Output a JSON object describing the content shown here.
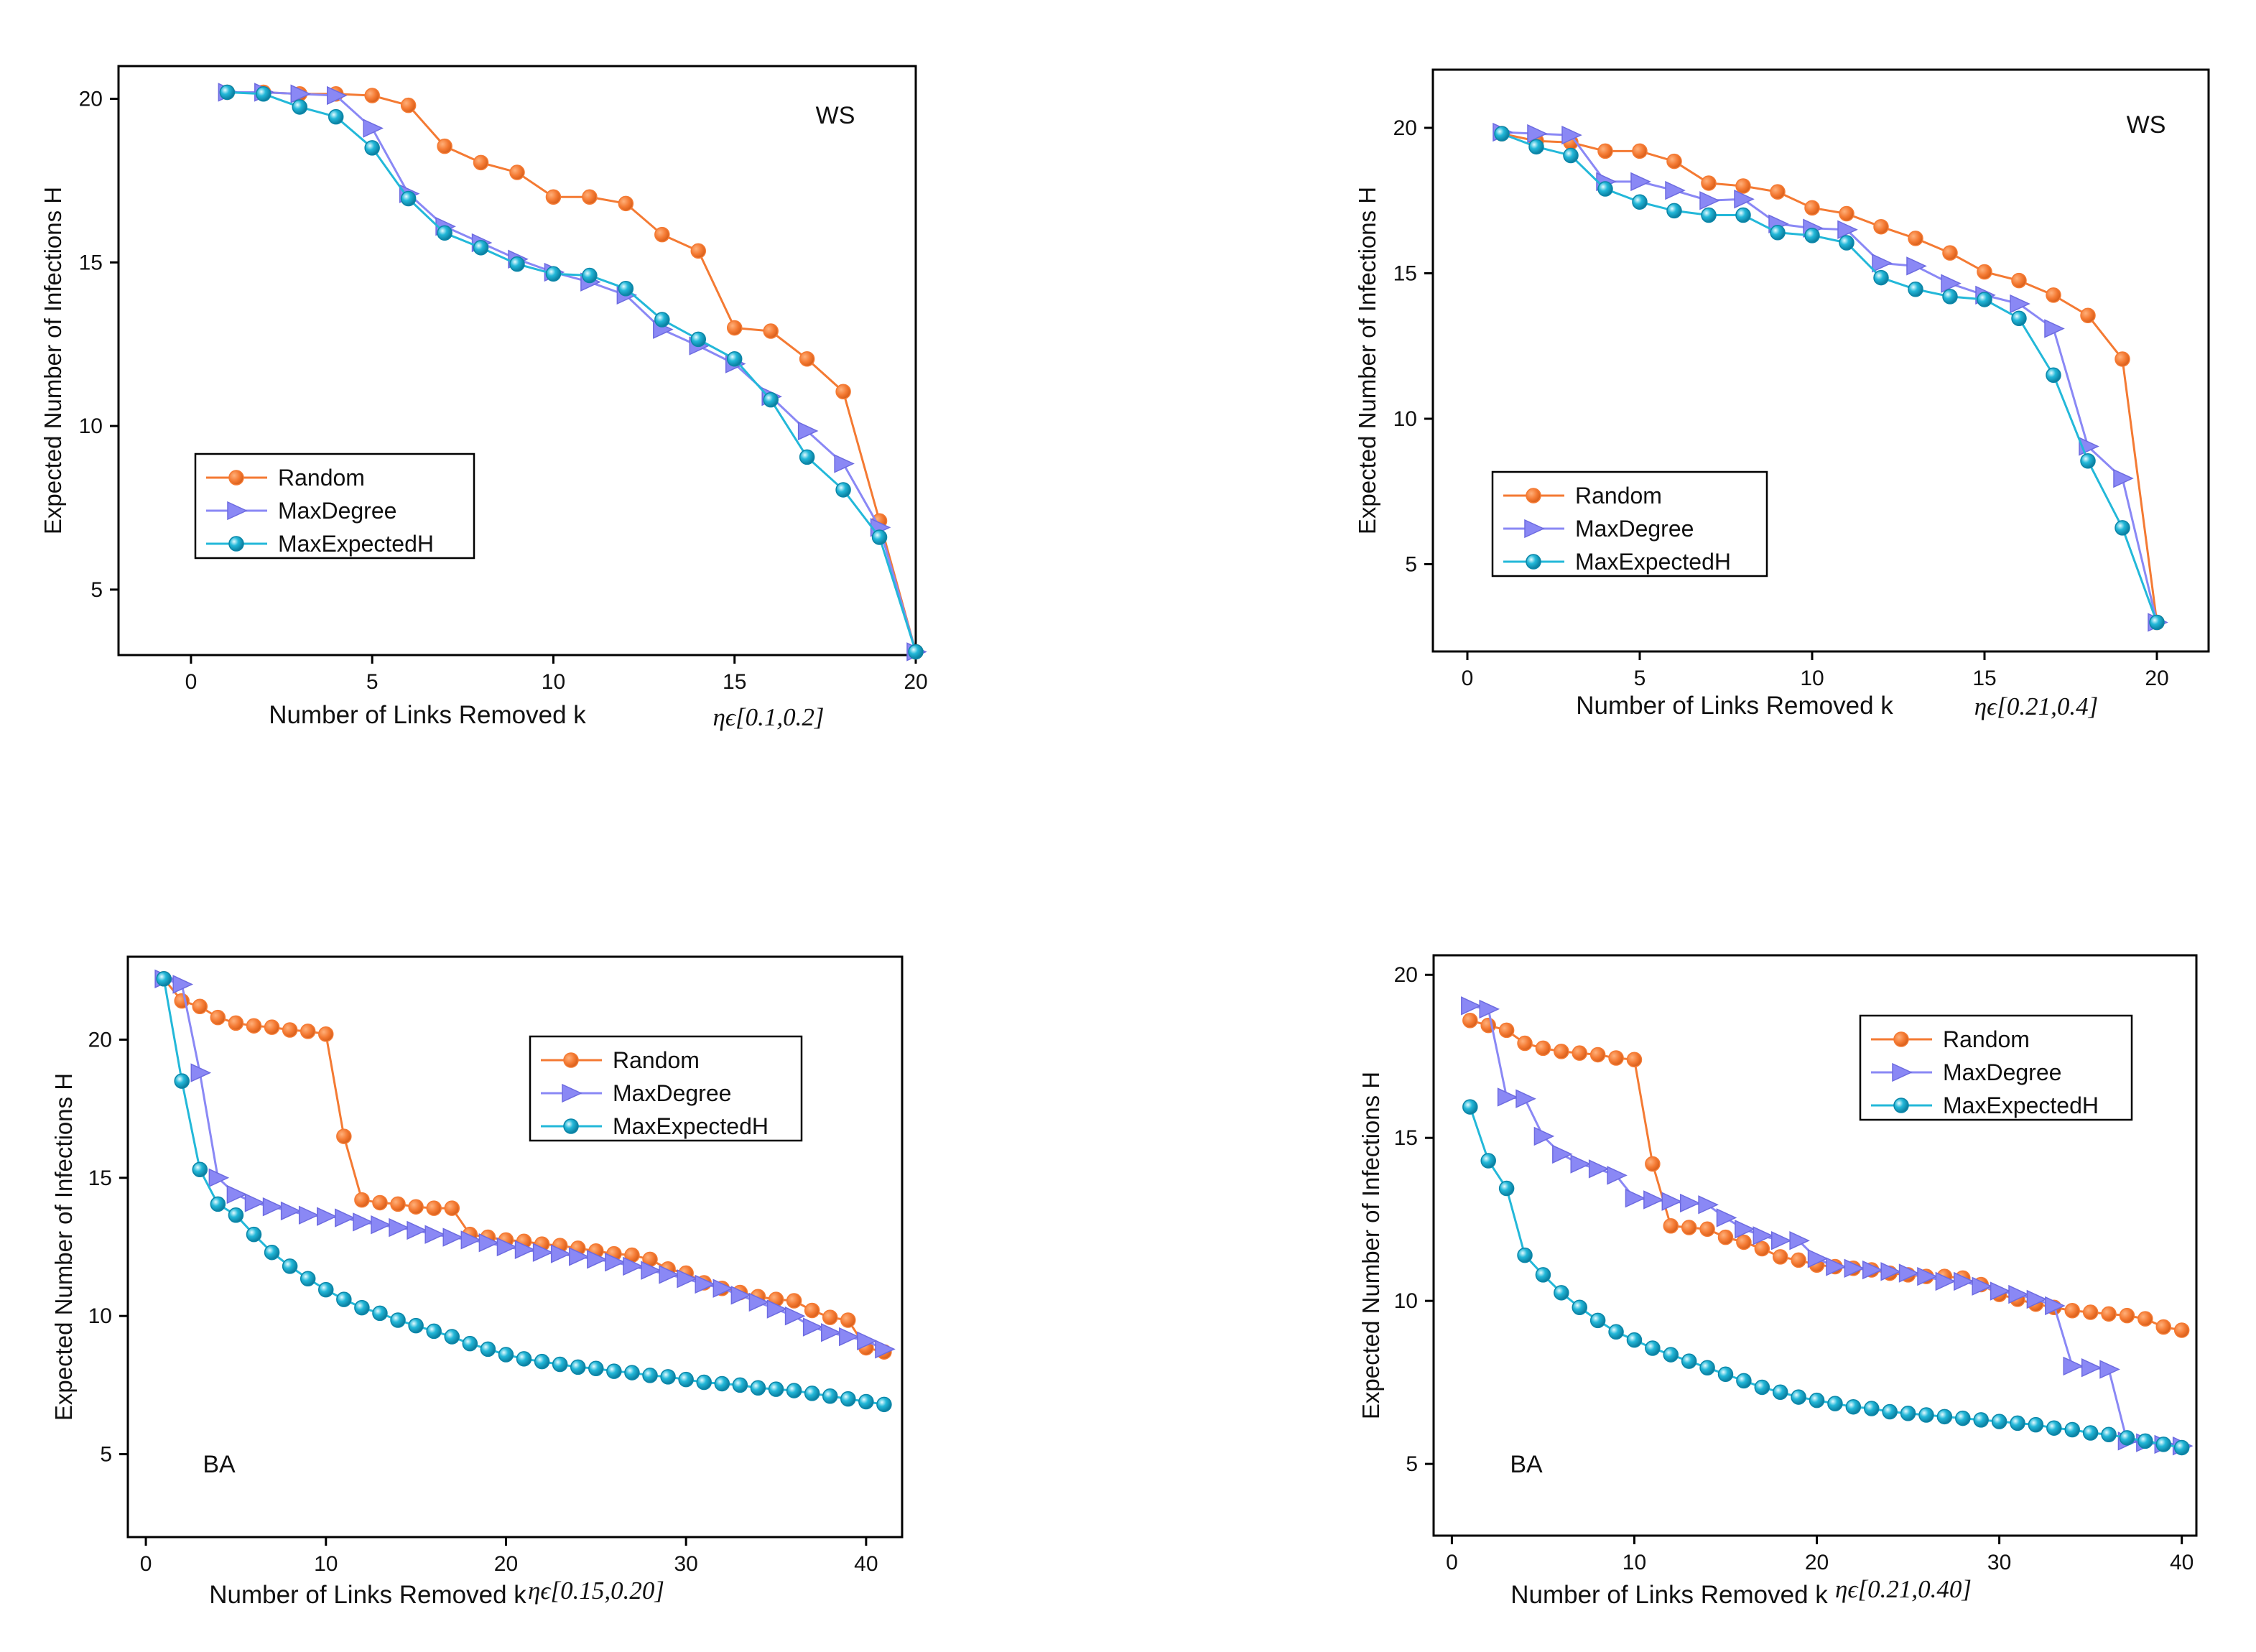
{
  "colors": {
    "random": "#F47A33",
    "maxdegree": "#8A88F5",
    "maxexpected": "#23B8D9"
  },
  "chart_data": [
    {
      "type": "line",
      "panel_label": "WS",
      "eta_note": "ηϵ[0.1,0.2]",
      "xlabel": "Number of Links Removed k",
      "ylabel": "Expected Number of Infections H",
      "xlim": [
        -2,
        20
      ],
      "ylim": [
        3,
        21
      ],
      "xticks": [
        0,
        5,
        10,
        15,
        20
      ],
      "yticks": [
        5,
        10,
        15,
        20
      ],
      "legend": {
        "position": "lower-left",
        "entries": [
          "Random",
          "MaxDegree",
          "MaxExpectedH"
        ]
      },
      "series": [
        {
          "name": "Random",
          "color_key": "random",
          "marker": "circle",
          "x": [
            1,
            2,
            3,
            4,
            5,
            6,
            7,
            8,
            9,
            10,
            11,
            12,
            13,
            14,
            15,
            16,
            17,
            18,
            19,
            20
          ],
          "y": [
            20.2,
            20.2,
            20.15,
            20.15,
            20.1,
            19.8,
            18.55,
            18.05,
            17.75,
            17.0,
            17.0,
            16.8,
            15.85,
            15.35,
            13.0,
            12.9,
            12.05,
            11.05,
            7.1,
            3.1
          ]
        },
        {
          "name": "MaxDegree",
          "color_key": "maxdegree",
          "marker": "triangle",
          "x": [
            1,
            2,
            3,
            4,
            5,
            6,
            7,
            8,
            9,
            10,
            11,
            12,
            13,
            14,
            15,
            16,
            17,
            18,
            19,
            20
          ],
          "y": [
            20.2,
            20.2,
            20.15,
            20.1,
            19.1,
            17.1,
            16.1,
            15.6,
            15.1,
            14.7,
            14.4,
            14.0,
            12.95,
            12.45,
            11.9,
            10.9,
            9.85,
            8.85,
            6.9,
            3.1
          ]
        },
        {
          "name": "MaxExpectedH",
          "color_key": "maxexpected",
          "marker": "sphere",
          "x": [
            1,
            2,
            3,
            4,
            5,
            6,
            7,
            8,
            9,
            10,
            11,
            12,
            13,
            14,
            15,
            16,
            17,
            18,
            19,
            20
          ],
          "y": [
            20.2,
            20.15,
            19.75,
            19.45,
            18.5,
            16.95,
            15.9,
            15.45,
            14.95,
            14.65,
            14.6,
            14.2,
            13.25,
            12.65,
            12.05,
            10.8,
            9.05,
            8.05,
            6.6,
            3.1
          ]
        }
      ]
    },
    {
      "type": "line",
      "panel_label": "WS",
      "eta_note": "ηϵ[0.21,0.4]",
      "xlabel": "Number of Links Removed k",
      "ylabel": "Expected Number of Infections H",
      "xlim": [
        -1,
        21.5
      ],
      "ylim": [
        2,
        22
      ],
      "xticks": [
        0,
        5,
        10,
        15,
        20
      ],
      "yticks": [
        5,
        10,
        15,
        20
      ],
      "legend": {
        "position": "lower-left",
        "entries": [
          "Random",
          "MaxDegree",
          "MaxExpectedH"
        ]
      },
      "series": [
        {
          "name": "Random",
          "color_key": "random",
          "marker": "circle",
          "x": [
            1,
            2,
            3,
            4,
            5,
            6,
            7,
            8,
            9,
            10,
            11,
            12,
            13,
            14,
            15,
            16,
            17,
            18,
            19,
            20
          ],
          "y": [
            19.8,
            19.55,
            19.5,
            19.2,
            19.2,
            18.85,
            18.1,
            18.0,
            17.8,
            17.25,
            17.05,
            16.6,
            16.2,
            15.7,
            15.05,
            14.75,
            14.25,
            13.55,
            12.05,
            3.0
          ]
        },
        {
          "name": "MaxDegree",
          "color_key": "maxdegree",
          "marker": "triangle",
          "x": [
            1,
            2,
            3,
            4,
            5,
            6,
            7,
            8,
            9,
            10,
            11,
            12,
            13,
            14,
            15,
            16,
            17,
            18,
            19,
            20
          ],
          "y": [
            19.85,
            19.8,
            19.75,
            18.15,
            18.15,
            17.85,
            17.5,
            17.55,
            16.7,
            16.55,
            16.5,
            15.35,
            15.25,
            14.65,
            14.25,
            13.95,
            13.1,
            9.05,
            7.95,
            3.0
          ]
        },
        {
          "name": "MaxExpectedH",
          "color_key": "maxexpected",
          "marker": "sphere",
          "x": [
            1,
            2,
            3,
            4,
            5,
            6,
            7,
            8,
            9,
            10,
            11,
            12,
            13,
            14,
            15,
            16,
            17,
            18,
            19,
            20
          ],
          "y": [
            19.8,
            19.35,
            19.05,
            17.9,
            17.45,
            17.15,
            17.0,
            17.0,
            16.4,
            16.3,
            16.05,
            14.85,
            14.45,
            14.2,
            14.1,
            13.45,
            11.5,
            8.55,
            6.25,
            3.0
          ]
        }
      ]
    },
    {
      "type": "line",
      "panel_label": "BA",
      "eta_note": "ηϵ[0.15,0.20]",
      "xlabel": "Number of Links Removed k",
      "ylabel": "Expected Number of Infections H",
      "xlim": [
        -1,
        42
      ],
      "ylim": [
        2,
        23
      ],
      "xticks": [
        0,
        10,
        20,
        30,
        40
      ],
      "yticks": [
        5,
        10,
        15,
        20
      ],
      "legend": {
        "position": "top-right",
        "entries": [
          "Random",
          "MaxDegree",
          "MaxExpectedH"
        ]
      },
      "series": [
        {
          "name": "Random",
          "color_key": "random",
          "marker": "circle",
          "x": [
            1,
            2,
            3,
            4,
            5,
            6,
            7,
            8,
            9,
            10,
            11,
            12,
            13,
            14,
            15,
            16,
            17,
            18,
            19,
            20,
            21,
            22,
            23,
            24,
            25,
            26,
            27,
            28,
            29,
            30,
            31,
            32,
            33,
            34,
            35,
            36,
            37,
            38,
            39,
            40,
            41
          ],
          "y": [
            22.2,
            21.4,
            21.2,
            20.8,
            20.6,
            20.5,
            20.45,
            20.35,
            20.3,
            20.2,
            16.5,
            14.2,
            14.1,
            14.05,
            13.95,
            13.9,
            13.9,
            12.95,
            12.85,
            12.75,
            12.7,
            12.6,
            12.55,
            12.45,
            12.35,
            12.25,
            12.2,
            12.05,
            11.7,
            11.55,
            11.2,
            11.0,
            10.85,
            10.7,
            10.6,
            10.55,
            10.2,
            9.95,
            9.85,
            8.85,
            8.7
          ]
        },
        {
          "name": "MaxDegree",
          "color_key": "maxdegree",
          "marker": "triangle",
          "x": [
            1,
            2,
            3,
            4,
            5,
            6,
            7,
            8,
            9,
            10,
            11,
            12,
            13,
            14,
            15,
            16,
            17,
            18,
            19,
            20,
            21,
            22,
            23,
            24,
            25,
            26,
            27,
            28,
            29,
            30,
            31,
            32,
            33,
            34,
            35,
            36,
            37,
            38,
            39,
            40,
            41
          ],
          "y": [
            22.2,
            22.0,
            18.8,
            15.0,
            14.4,
            14.1,
            13.95,
            13.8,
            13.65,
            13.6,
            13.55,
            13.4,
            13.3,
            13.2,
            13.1,
            12.95,
            12.85,
            12.75,
            12.65,
            12.5,
            12.4,
            12.3,
            12.25,
            12.15,
            12.05,
            11.95,
            11.8,
            11.65,
            11.5,
            11.35,
            11.15,
            11.0,
            10.75,
            10.5,
            10.25,
            10.0,
            9.6,
            9.4,
            9.25,
            9.1,
            8.8
          ]
        },
        {
          "name": "MaxExpectedH",
          "color_key": "maxexpected",
          "marker": "sphere",
          "x": [
            1,
            2,
            3,
            4,
            5,
            6,
            7,
            8,
            9,
            10,
            11,
            12,
            13,
            14,
            15,
            16,
            17,
            18,
            19,
            20,
            21,
            22,
            23,
            24,
            25,
            26,
            27,
            28,
            29,
            30,
            31,
            32,
            33,
            34,
            35,
            36,
            37,
            38,
            39,
            40,
            41
          ],
          "y": [
            22.2,
            18.5,
            15.3,
            14.05,
            13.65,
            12.95,
            12.3,
            11.8,
            11.35,
            10.95,
            10.6,
            10.3,
            10.1,
            9.85,
            9.65,
            9.45,
            9.25,
            9.0,
            8.8,
            8.6,
            8.45,
            8.35,
            8.25,
            8.15,
            8.1,
            8.0,
            7.95,
            7.85,
            7.8,
            7.7,
            7.6,
            7.55,
            7.5,
            7.4,
            7.35,
            7.3,
            7.2,
            7.1,
            7.0,
            6.9,
            6.8
          ]
        }
      ]
    },
    {
      "type": "line",
      "panel_label": "BA",
      "eta_note": "ηϵ[0.21,0.40]",
      "xlabel": "Number of Links Removed k",
      "ylabel": "Expected Number of Infections H",
      "xlim": [
        -1,
        40.8
      ],
      "ylim": [
        2.8,
        20.6
      ],
      "xticks": [
        0,
        10,
        20,
        30,
        40
      ],
      "yticks": [
        5,
        10,
        15,
        20
      ],
      "legend": {
        "position": "top-right",
        "entries": [
          "Random",
          "MaxDegree",
          "MaxExpectedH"
        ]
      },
      "series": [
        {
          "name": "Random",
          "color_key": "random",
          "marker": "circle",
          "x": [
            1,
            2,
            3,
            4,
            5,
            6,
            7,
            8,
            9,
            10,
            11,
            12,
            13,
            14,
            15,
            16,
            17,
            18,
            19,
            20,
            21,
            22,
            23,
            24,
            25,
            26,
            27,
            28,
            29,
            30,
            31,
            32,
            33,
            34,
            35,
            36,
            37,
            38,
            39,
            40
          ],
          "y": [
            18.6,
            18.45,
            18.3,
            17.9,
            17.75,
            17.65,
            17.6,
            17.55,
            17.45,
            17.4,
            14.2,
            12.3,
            12.25,
            12.2,
            11.95,
            11.8,
            11.6,
            11.35,
            11.25,
            11.1,
            11.05,
            11.0,
            10.95,
            10.85,
            10.8,
            10.75,
            10.75,
            10.7,
            10.5,
            10.2,
            10.05,
            9.9,
            9.8,
            9.7,
            9.65,
            9.6,
            9.55,
            9.45,
            9.2,
            9.1
          ]
        },
        {
          "name": "MaxDegree",
          "color_key": "maxdegree",
          "marker": "triangle",
          "x": [
            1,
            2,
            3,
            4,
            5,
            6,
            7,
            8,
            9,
            10,
            11,
            12,
            13,
            14,
            15,
            16,
            17,
            18,
            19,
            20,
            21,
            22,
            23,
            24,
            25,
            26,
            27,
            28,
            29,
            30,
            31,
            32,
            33,
            34,
            35,
            36,
            37,
            38,
            39,
            40
          ],
          "y": [
            19.05,
            18.95,
            16.25,
            16.2,
            15.05,
            14.5,
            14.2,
            14.05,
            13.85,
            13.15,
            13.1,
            13.05,
            13.0,
            12.95,
            12.55,
            12.2,
            12.0,
            11.85,
            11.85,
            11.3,
            11.05,
            11.0,
            10.95,
            10.9,
            10.85,
            10.75,
            10.6,
            10.6,
            10.45,
            10.3,
            10.2,
            10.05,
            9.85,
            8.0,
            7.95,
            7.9,
            5.7,
            5.65,
            5.6,
            5.55
          ]
        },
        {
          "name": "MaxExpectedH",
          "color_key": "maxexpected",
          "marker": "sphere",
          "x": [
            1,
            2,
            3,
            4,
            5,
            6,
            7,
            8,
            9,
            10,
            11,
            12,
            13,
            14,
            15,
            16,
            17,
            18,
            19,
            20,
            21,
            22,
            23,
            24,
            25,
            26,
            27,
            28,
            29,
            30,
            31,
            32,
            33,
            34,
            35,
            36,
            37,
            38,
            39,
            40
          ],
          "y": [
            15.95,
            14.3,
            13.45,
            11.4,
            10.8,
            10.25,
            9.8,
            9.4,
            9.05,
            8.8,
            8.55,
            8.35,
            8.15,
            7.95,
            7.75,
            7.55,
            7.35,
            7.2,
            7.05,
            6.95,
            6.85,
            6.75,
            6.7,
            6.6,
            6.55,
            6.5,
            6.45,
            6.4,
            6.35,
            6.3,
            6.25,
            6.2,
            6.1,
            6.05,
            5.95,
            5.9,
            5.8,
            5.7,
            5.6,
            5.5
          ]
        }
      ]
    }
  ]
}
